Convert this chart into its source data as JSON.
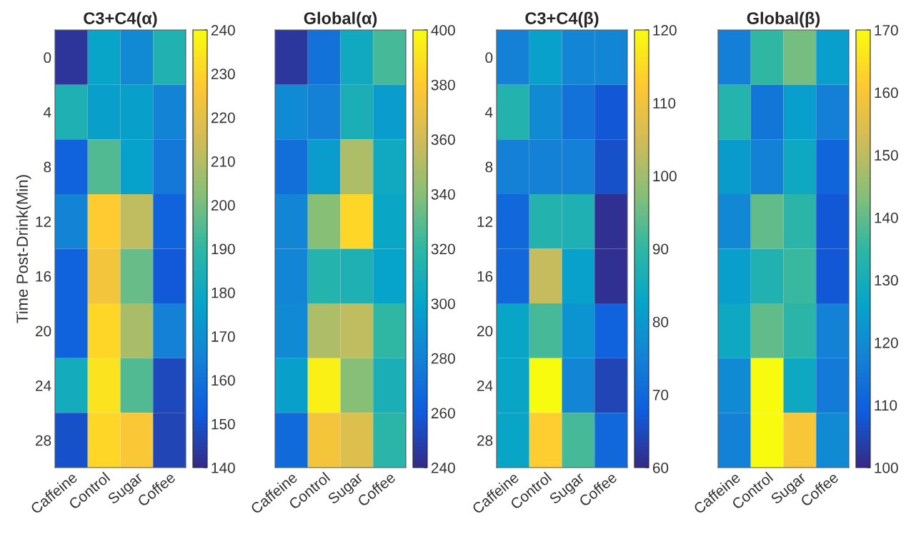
{
  "chart_data": [
    {
      "type": "heatmap",
      "title": "C3+C4(α)",
      "ylabel": "Time Post-Drink(Min)",
      "categories": [
        "Caffeine",
        "Control",
        "Sugar",
        "Coffee"
      ],
      "y_categories": [
        "0",
        "4",
        "8",
        "12",
        "16",
        "20",
        "24",
        "28"
      ],
      "cells": [
        [
          143,
          178,
          168,
          186
        ],
        [
          185,
          176,
          176,
          166
        ],
        [
          155,
          195,
          177,
          162
        ],
        [
          166,
          228,
          212,
          155
        ],
        [
          155,
          224,
          198,
          152
        ],
        [
          155,
          231,
          208,
          165
        ],
        [
          182,
          234,
          195,
          148
        ],
        [
          150,
          231,
          226,
          147
        ]
      ],
      "clim": [
        140,
        240
      ],
      "cticks": [
        140,
        150,
        160,
        170,
        180,
        190,
        200,
        210,
        220,
        230,
        240
      ]
    },
    {
      "type": "heatmap",
      "title": "Global(α)",
      "categories": [
        "Caffeine",
        "Control",
        "Sugar",
        "Coffee"
      ],
      "y_categories": [
        "0",
        "4",
        "8",
        "12",
        "16",
        "20",
        "24",
        "28"
      ],
      "tick_labels": "x",
      "cells": [
        [
          245,
          272,
          305,
          325
        ],
        [
          285,
          280,
          310,
          295
        ],
        [
          270,
          295,
          350,
          305
        ],
        [
          282,
          340,
          385,
          302
        ],
        [
          282,
          315,
          312,
          300
        ],
        [
          285,
          350,
          355,
          320
        ],
        [
          298,
          395,
          340,
          310
        ],
        [
          268,
          375,
          365,
          318
        ]
      ],
      "clim": [
        240,
        400
      ],
      "cticks": [
        240,
        260,
        280,
        300,
        320,
        340,
        360,
        380,
        400
      ]
    },
    {
      "type": "heatmap",
      "title": "C3+C4(β)",
      "categories": [
        "Caffeine",
        "Control",
        "Sugar",
        "Coffee"
      ],
      "y_categories": [
        "0",
        "4",
        "8",
        "12",
        "16",
        "20",
        "24",
        "28"
      ],
      "cells": [
        [
          75,
          82,
          76,
          76
        ],
        [
          88,
          77,
          72,
          67
        ],
        [
          75,
          75,
          75,
          66
        ],
        [
          70,
          88,
          87,
          61
        ],
        [
          70,
          104,
          82,
          61
        ],
        [
          83,
          92,
          79,
          69
        ],
        [
          83,
          120,
          76,
          64
        ],
        [
          83,
          113,
          92,
          70
        ]
      ],
      "clim": [
        60,
        120
      ],
      "cticks": [
        60,
        70,
        80,
        90,
        100,
        110,
        120
      ]
    },
    {
      "type": "heatmap",
      "title": "Global(β)",
      "categories": [
        "Caffeine",
        "Control",
        "Sugar",
        "Coffee"
      ],
      "y_categories": [
        "0",
        "4",
        "8",
        "12",
        "16",
        "20",
        "24",
        "28"
      ],
      "tick_labels": "x",
      "cells": [
        [
          117,
          135,
          142,
          125
        ],
        [
          133,
          115,
          125,
          117
        ],
        [
          124,
          118,
          128,
          111
        ],
        [
          119,
          140,
          134,
          108
        ],
        [
          125,
          132,
          136,
          108
        ],
        [
          128,
          140,
          134,
          118
        ],
        [
          120,
          170,
          128,
          116
        ],
        [
          118,
          170,
          160,
          120
        ]
      ],
      "clim": [
        100,
        170
      ],
      "cticks": [
        100,
        110,
        120,
        130,
        140,
        150,
        160,
        170
      ]
    }
  ]
}
